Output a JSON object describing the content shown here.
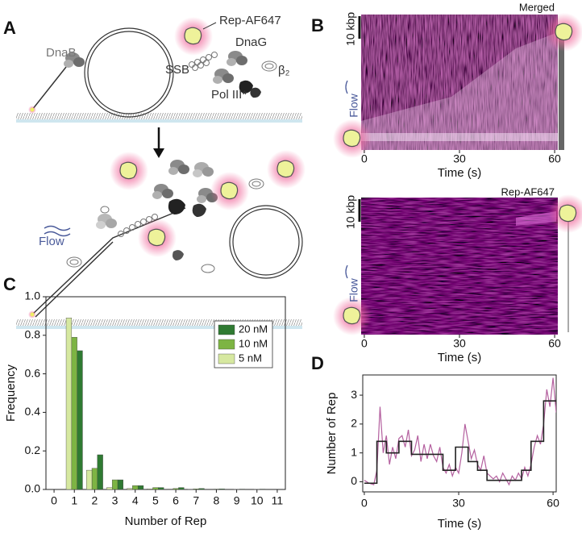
{
  "panel_labels": [
    "A",
    "B",
    "C",
    "D"
  ],
  "schematic": {
    "dnab": "DnaB",
    "rep": "Rep-AF647",
    "dnag": "DnaG",
    "ssb": "SSB",
    "beta": "β₂",
    "pol": "Pol III*",
    "flow": "Flow"
  },
  "kymographs": [
    {
      "title": "Merged",
      "scale": "10 kbp",
      "flow": "Flow",
      "xlabel": "Time (s)",
      "xlim": [
        -1,
        61
      ],
      "xticks": [
        0,
        30,
        60
      ]
    },
    {
      "title": "Rep-AF647",
      "scale": "10 kbp",
      "flow": "Flow",
      "xlabel": "Time (s)",
      "xlim": [
        -1,
        61
      ],
      "xticks": [
        0,
        30,
        60
      ]
    }
  ],
  "chart_data": [
    {
      "type": "bar",
      "xlabel": "Number of Rep",
      "ylabel": "Frequency",
      "x": [
        1,
        2,
        3,
        4,
        5,
        6,
        7,
        8,
        9,
        10
      ],
      "series": [
        {
          "name": "20 nM",
          "color": "#2f7a32",
          "values": [
            0.72,
            0.18,
            0.05,
            0.02,
            0.01,
            0.01,
            0.005,
            0.003,
            0.002,
            0.002
          ]
        },
        {
          "name": "10 nM",
          "color": "#7db443",
          "values": [
            0.79,
            0.11,
            0.05,
            0.02,
            0.01,
            0.005,
            0.003,
            0.002,
            0.001,
            0.001
          ]
        },
        {
          "name": "5 nM",
          "color": "#d6e8a0",
          "values": [
            0.89,
            0.1,
            0.01,
            0.005,
            0.003,
            0.002,
            0.001,
            0,
            0,
            0
          ]
        }
      ],
      "xlim": [
        -0.4,
        11.4
      ],
      "xticks": [
        0,
        1,
        2,
        3,
        4,
        5,
        6,
        7,
        8,
        9,
        10,
        11
      ],
      "ylim": [
        0,
        1
      ],
      "yticks": [
        {
          "value": 0,
          "label": "0.0"
        },
        0.2,
        0.4,
        0.6,
        0.8,
        {
          "value": 1,
          "label": "1.0"
        }
      ],
      "legend": "upper right"
    },
    {
      "type": "line",
      "xlabel": "Time (s)",
      "ylabel": "Number of Rep",
      "xlim": [
        -0.5,
        61
      ],
      "ylim": [
        -0.35,
        3.7
      ],
      "xticks": [
        0,
        30,
        60
      ],
      "yticks": [
        0,
        1,
        2,
        3
      ],
      "series": [
        {
          "color": "#b4609f",
          "x": [
            0,
            1.5,
            3,
            4,
            5,
            6,
            7,
            8,
            9,
            10,
            11,
            12,
            13,
            14,
            15,
            16,
            17,
            18,
            19,
            20,
            21,
            22,
            23,
            24,
            25,
            26,
            27,
            28,
            29,
            30,
            31,
            32,
            33,
            34,
            35,
            36,
            37,
            38,
            39,
            40,
            41,
            42,
            43,
            44,
            45,
            46,
            47,
            48,
            49,
            50,
            51,
            52,
            53,
            54,
            55,
            56,
            57,
            58,
            59,
            60,
            61
          ],
          "values": [
            0.05,
            -0.05,
            -0.1,
            0.4,
            2.6,
            1.0,
            1.6,
            0.6,
            1.2,
            0.8,
            1.5,
            1.6,
            1.2,
            1.8,
            0.9,
            1.1,
            1.6,
            0.7,
            1.3,
            0.8,
            1.3,
            0.9,
            0.7,
            1.2,
            0.5,
            0.3,
            0.6,
            0.2,
            0.5,
            0.3,
            1.0,
            2.0,
            1.4,
            0.8,
            1.1,
            0.6,
            0.4,
            0.9,
            0.3,
            0.2,
            0.1,
            0.2,
            0.0,
            0.3,
            0.1,
            -0.1,
            0.2,
            0.05,
            0.3,
            0.1,
            0.5,
            0.2,
            0.6,
            1.2,
            1.6,
            1.3,
            2.0,
            3.2,
            2.6,
            3.6,
            2.4
          ]
        },
        {
          "color": "#222222",
          "x": [
            0,
            4,
            4,
            7,
            7,
            11,
            11,
            15,
            15,
            25,
            25,
            29,
            29,
            33,
            33,
            36,
            36,
            39,
            39,
            50,
            50,
            53,
            53,
            57,
            57,
            61
          ],
          "values": [
            -0.05,
            -0.05,
            1.4,
            1.4,
            1.0,
            1.0,
            1.4,
            1.4,
            0.95,
            0.95,
            0.4,
            0.4,
            1.2,
            1.2,
            0.7,
            0.7,
            0.4,
            0.4,
            0.05,
            0.05,
            0.4,
            0.4,
            1.4,
            1.4,
            2.8,
            2.8
          ]
        }
      ]
    }
  ]
}
